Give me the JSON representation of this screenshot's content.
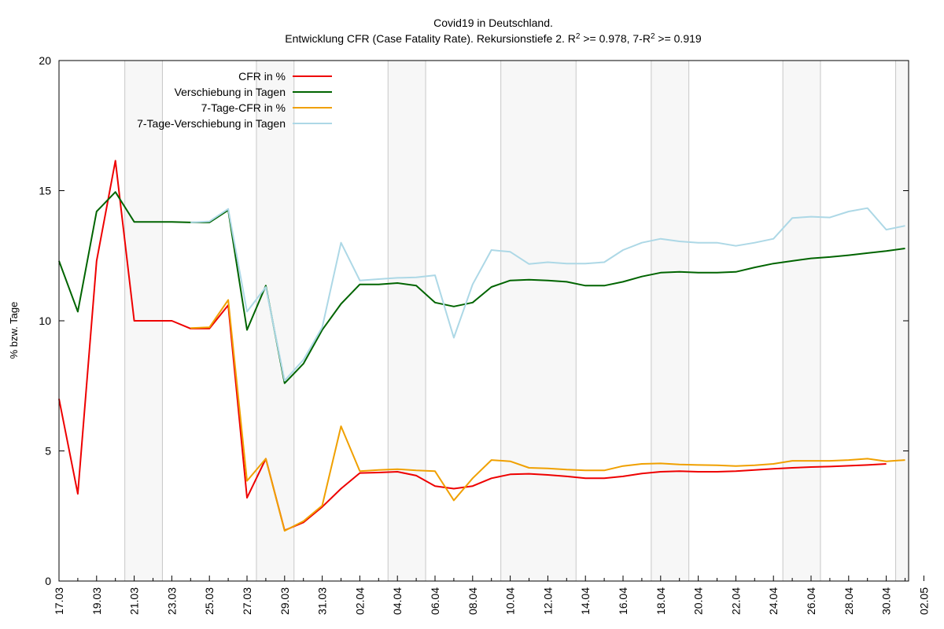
{
  "chart_data": {
    "type": "line",
    "title": "Covid19 in Deutschland.",
    "subtitle_parts": {
      "a": "Entwicklung CFR (Case Fatality Rate). Rekursionstiefe 2. R",
      "sup1": "2",
      "b": " >= 0.978, 7-R",
      "sup2": "2",
      "c": " >= 0.919"
    },
    "ylabel": "% bzw. Tage",
    "xlabel": "",
    "ylim": [
      0,
      20
    ],
    "yticks": [
      "0",
      "5",
      "10",
      "15",
      "20"
    ],
    "grid": false,
    "legend_position": "top-center",
    "x_tick_labels": [
      "17.03",
      "19.03",
      "21.03",
      "23.03",
      "25.03",
      "27.03",
      "29.03",
      "31.03",
      "02.04",
      "04.04",
      "06.04",
      "08.04",
      "10.04",
      "12.04",
      "14.04",
      "16.04",
      "18.04",
      "20.04",
      "22.04",
      "24.04",
      "26.04",
      "28.04",
      "30.04",
      "02.05"
    ],
    "weekend_shading_ranges": [
      [
        "21.03",
        "22.03"
      ],
      [
        "28.03",
        "29.03"
      ],
      [
        "04.04",
        "05.04"
      ],
      [
        "10.04",
        "13.04"
      ],
      [
        "18.04",
        "19.04"
      ],
      [
        "25.04",
        "26.04"
      ],
      [
        "01.05",
        "02.05"
      ]
    ],
    "series": [
      {
        "name": "CFR in %",
        "color": "#ee0000",
        "start": "17.03",
        "values": [
          7.0,
          3.35,
          12.3,
          16.15,
          10.0,
          10.0,
          10.0,
          9.7,
          9.7,
          10.6,
          3.2,
          4.7,
          1.95,
          2.25,
          2.85,
          3.55,
          4.15,
          4.17,
          4.2,
          4.05,
          3.65,
          3.55,
          3.65,
          3.95,
          4.1,
          4.12,
          4.08,
          4.02,
          3.95,
          3.95,
          4.02,
          4.13,
          4.2,
          4.22,
          4.2,
          4.2,
          4.22,
          4.27,
          4.31,
          4.35,
          4.38,
          4.4,
          4.43,
          4.46,
          4.5
        ]
      },
      {
        "name": "Verschiebung in Tagen",
        "color": "#006400",
        "start": "17.03",
        "values": [
          12.3,
          10.35,
          14.2,
          14.95,
          13.8,
          13.8,
          13.8,
          13.78,
          13.78,
          14.25,
          9.65,
          11.35,
          7.6,
          8.35,
          9.65,
          10.65,
          11.4,
          11.4,
          11.45,
          11.35,
          10.7,
          10.55,
          10.7,
          11.3,
          11.55,
          11.58,
          11.55,
          11.5,
          11.35,
          11.35,
          11.5,
          11.7,
          11.85,
          11.88,
          11.85,
          11.85,
          11.88,
          12.05,
          12.2,
          12.3,
          12.4,
          12.45,
          12.52,
          12.6,
          12.68,
          12.78
        ]
      },
      {
        "name": "7-Tage-CFR in %",
        "color": "#f0a000",
        "start": "24.03",
        "values": [
          9.72,
          9.75,
          10.8,
          3.85,
          4.7,
          1.93,
          2.3,
          2.9,
          5.95,
          4.22,
          4.27,
          4.3,
          4.25,
          4.22,
          3.1,
          3.95,
          4.65,
          4.6,
          4.35,
          4.33,
          4.28,
          4.25,
          4.25,
          4.42,
          4.5,
          4.52,
          4.48,
          4.46,
          4.45,
          4.42,
          4.45,
          4.5,
          4.62,
          4.62,
          4.62,
          4.65,
          4.7,
          4.6,
          4.65
        ]
      },
      {
        "name": "7-Tage-Verschiebung in Tagen",
        "color": "#add8e6",
        "start": "24.03",
        "values": [
          13.78,
          13.82,
          14.3,
          10.35,
          11.3,
          7.7,
          8.5,
          9.75,
          13.0,
          11.55,
          11.6,
          11.65,
          11.67,
          11.75,
          9.35,
          11.4,
          12.72,
          12.65,
          12.18,
          12.25,
          12.2,
          12.2,
          12.25,
          12.72,
          13.0,
          13.15,
          13.05,
          13.0,
          13.0,
          12.88,
          13.0,
          13.15,
          13.95,
          14.0,
          13.97,
          14.2,
          14.33,
          13.5,
          13.65
        ]
      }
    ]
  }
}
